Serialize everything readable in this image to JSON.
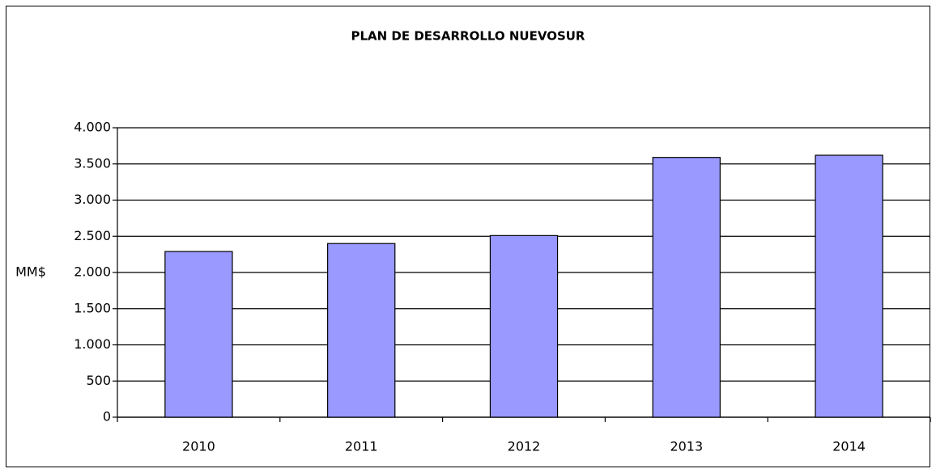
{
  "chart_data": {
    "type": "bar",
    "title": "PLAN DE DESARROLLO NUEVOSUR",
    "y_label": "MM$",
    "categories": [
      "2010",
      "2011",
      "2012",
      "2013",
      "2014"
    ],
    "values": [
      2290,
      2400,
      2510,
      3590,
      3620
    ],
    "color": "#9999ff",
    "ylim": [
      0,
      4000
    ],
    "yticks": [
      0,
      500,
      {
        "value": 1000,
        "label": "1.000"
      },
      {
        "value": 1500,
        "label": "1.500"
      },
      {
        "value": 2000,
        "label": "2.000"
      },
      {
        "value": 2500,
        "label": "2.500"
      },
      {
        "value": 3000,
        "label": "3.000"
      },
      {
        "value": 3500,
        "label": "3.500"
      },
      {
        "value": 4000,
        "label": "4.000"
      }
    ],
    "grid": true
  }
}
